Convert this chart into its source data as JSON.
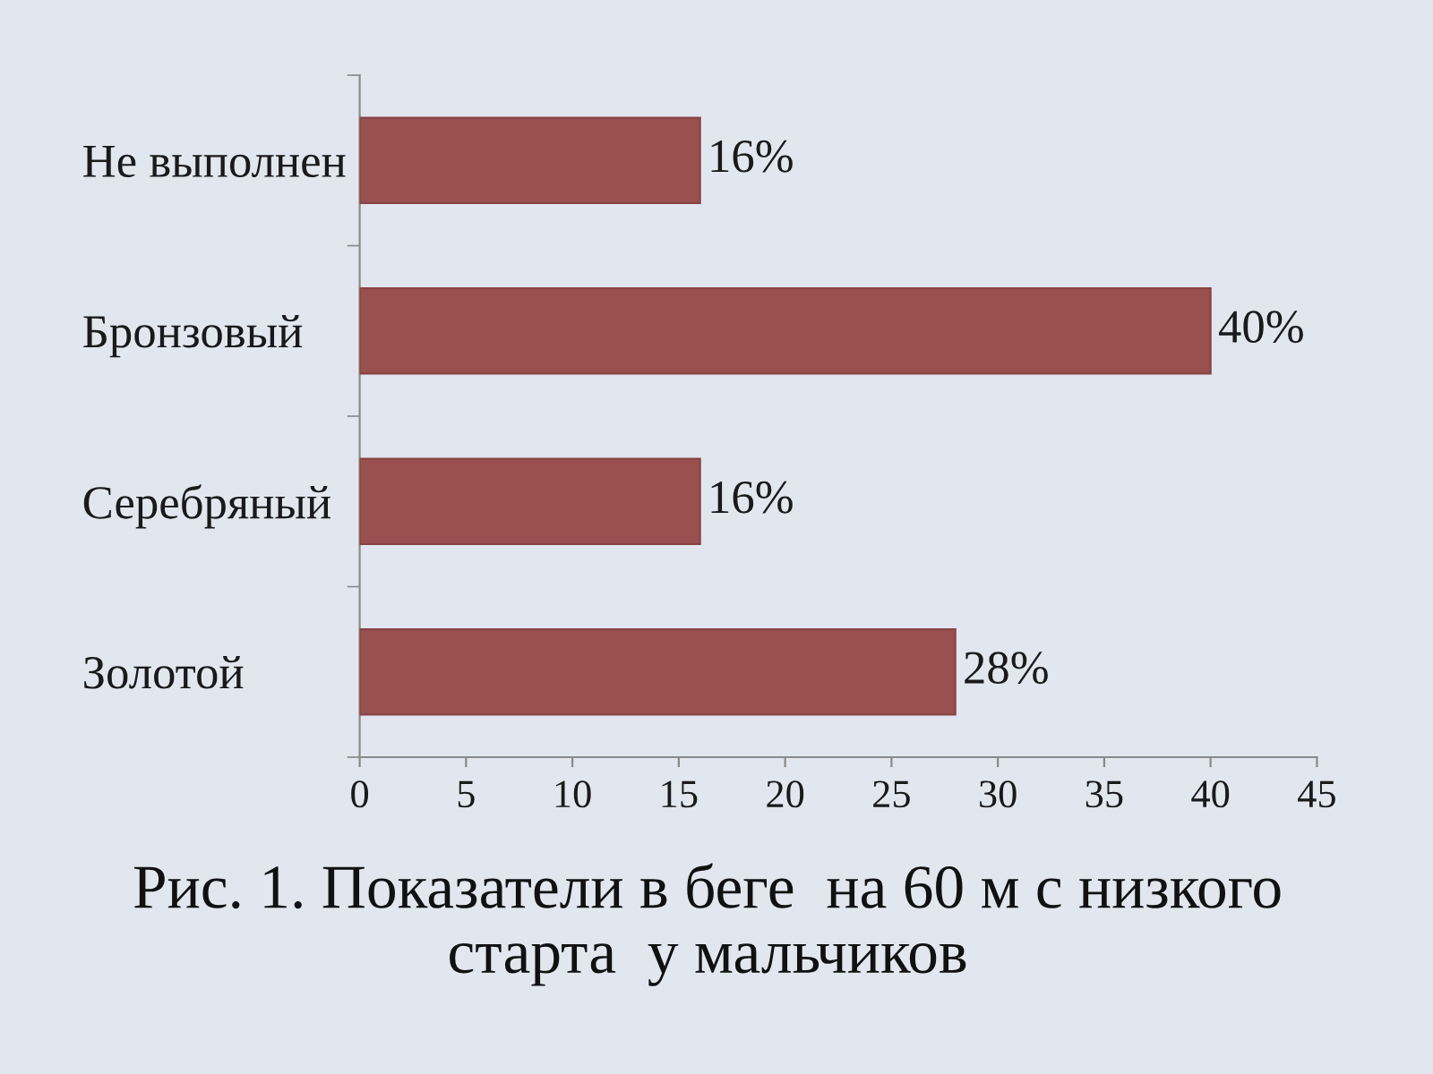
{
  "chart_data": {
    "type": "bar",
    "orientation": "horizontal",
    "title": "Рис. 1. Показатели в беге  на 60 м с низкого старта  у мальчиков",
    "categories": [
      "Не выполнен",
      "Бронзовый",
      "Серебряный",
      "Золотой"
    ],
    "values": [
      16,
      40,
      16,
      28
    ],
    "value_labels": [
      "16%",
      "40%",
      "16%",
      "28%"
    ],
    "color": "#9b5050",
    "xlim": [
      0,
      45
    ],
    "xticks": [
      0,
      5,
      10,
      15,
      20,
      25,
      30,
      35,
      40,
      45
    ]
  }
}
